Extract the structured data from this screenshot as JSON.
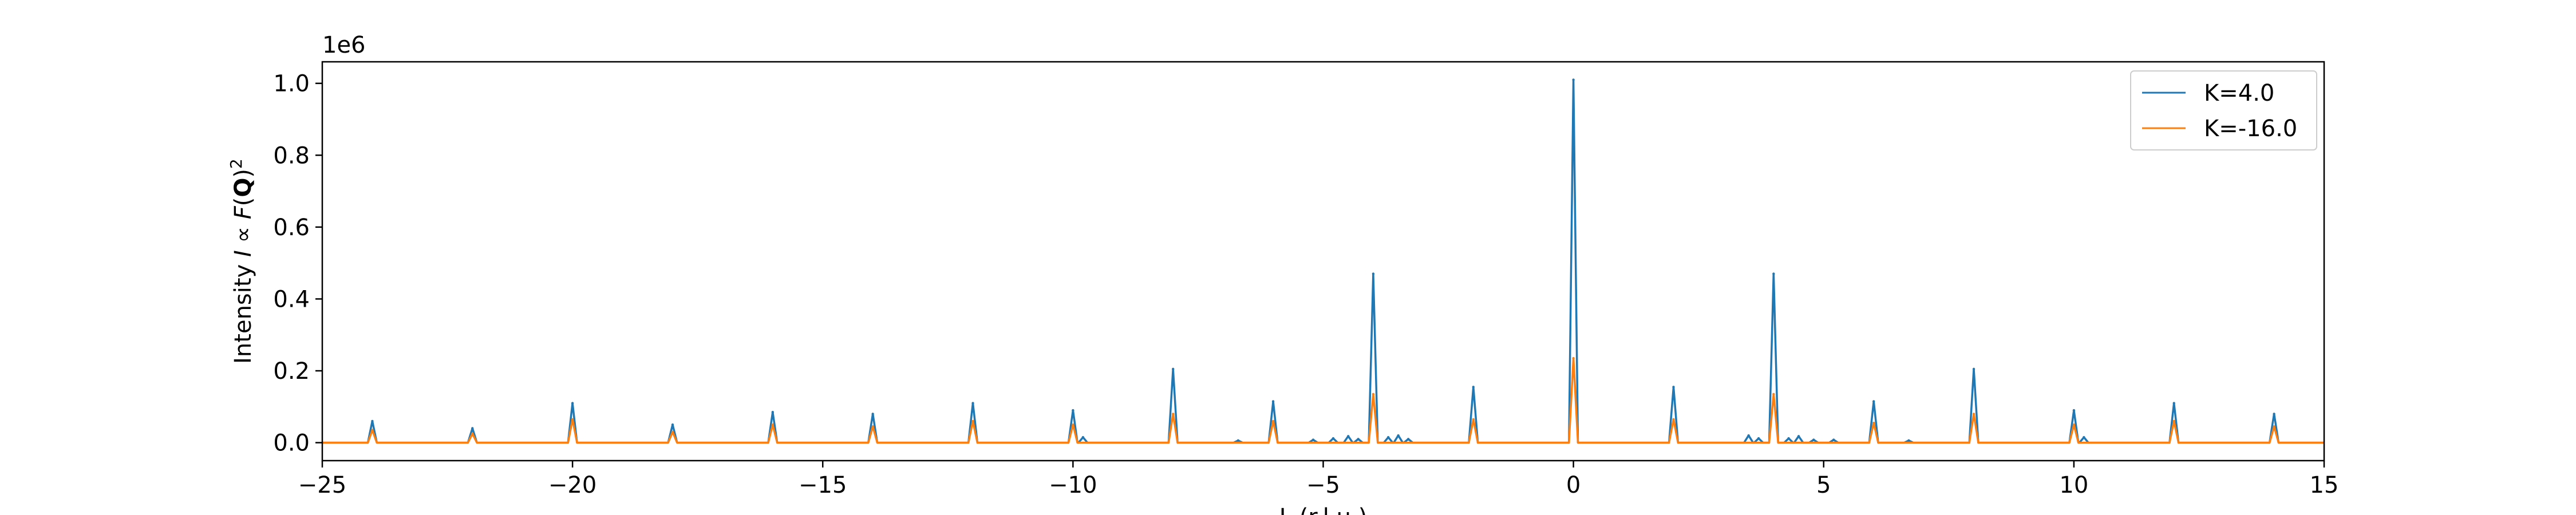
{
  "chart_data": {
    "type": "line",
    "title": "",
    "xlabel": "L (r.l.u.)",
    "ylabel": "Intensity I ∝ F(Q)²",
    "y_offset_label": "1e6",
    "xlim": [
      -25,
      15
    ],
    "ylim": [
      -0.05,
      1.06
    ],
    "y_scale_multiplier": 1000000,
    "x_ticks": [
      -25,
      -20,
      -15,
      -10,
      -5,
      0,
      5,
      10,
      15
    ],
    "x_tick_labels": [
      "−25",
      "−20",
      "−15",
      "−10",
      "−5",
      "0",
      "5",
      "10",
      "15"
    ],
    "y_ticks": [
      0.0,
      0.2,
      0.4,
      0.6,
      0.8,
      1.0
    ],
    "y_tick_labels": [
      "0.0",
      "0.2",
      "0.4",
      "0.6",
      "0.8",
      "1.0"
    ],
    "grid": false,
    "legend_position": "top-right",
    "series": [
      {
        "name": "K=4.0",
        "color": "#1f77b4",
        "peaks": [
          [
            -24,
            0.06
          ],
          [
            -22,
            0.04
          ],
          [
            -20,
            0.11
          ],
          [
            -18,
            0.05
          ],
          [
            -16,
            0.085
          ],
          [
            -14,
            0.08
          ],
          [
            -12,
            0.11
          ],
          [
            -10,
            0.09
          ],
          [
            -9.8,
            0.015
          ],
          [
            -8,
            0.205
          ],
          [
            -6.7,
            0.006
          ],
          [
            -6,
            0.115
          ],
          [
            -5.2,
            0.008
          ],
          [
            -4.8,
            0.012
          ],
          [
            -4.5,
            0.018
          ],
          [
            -4.3,
            0.01
          ],
          [
            -4,
            0.47
          ],
          [
            -3.7,
            0.015
          ],
          [
            -3.5,
            0.02
          ],
          [
            -3.3,
            0.01
          ],
          [
            -2,
            0.155
          ],
          [
            0,
            1.01
          ],
          [
            2,
            0.155
          ],
          [
            3.5,
            0.02
          ],
          [
            3.7,
            0.012
          ],
          [
            4,
            0.47
          ],
          [
            4.3,
            0.012
          ],
          [
            4.5,
            0.018
          ],
          [
            4.8,
            0.008
          ],
          [
            5.2,
            0.008
          ],
          [
            6,
            0.115
          ],
          [
            6.7,
            0.006
          ],
          [
            8,
            0.205
          ],
          [
            10,
            0.09
          ],
          [
            10.2,
            0.015
          ],
          [
            12,
            0.11
          ],
          [
            14,
            0.08
          ]
        ]
      },
      {
        "name": "K=-16.0",
        "color": "#ff7f0e",
        "peaks": [
          [
            -24,
            0.035
          ],
          [
            -22,
            0.025
          ],
          [
            -20,
            0.065
          ],
          [
            -18,
            0.03
          ],
          [
            -16,
            0.05
          ],
          [
            -14,
            0.045
          ],
          [
            -12,
            0.06
          ],
          [
            -10,
            0.05
          ],
          [
            -8,
            0.08
          ],
          [
            -6,
            0.06
          ],
          [
            -4,
            0.135
          ],
          [
            -2,
            0.065
          ],
          [
            0,
            0.235
          ],
          [
            2,
            0.065
          ],
          [
            4,
            0.135
          ],
          [
            6,
            0.055
          ],
          [
            8,
            0.08
          ],
          [
            10,
            0.05
          ],
          [
            12,
            0.06
          ],
          [
            14,
            0.045
          ]
        ]
      }
    ]
  }
}
